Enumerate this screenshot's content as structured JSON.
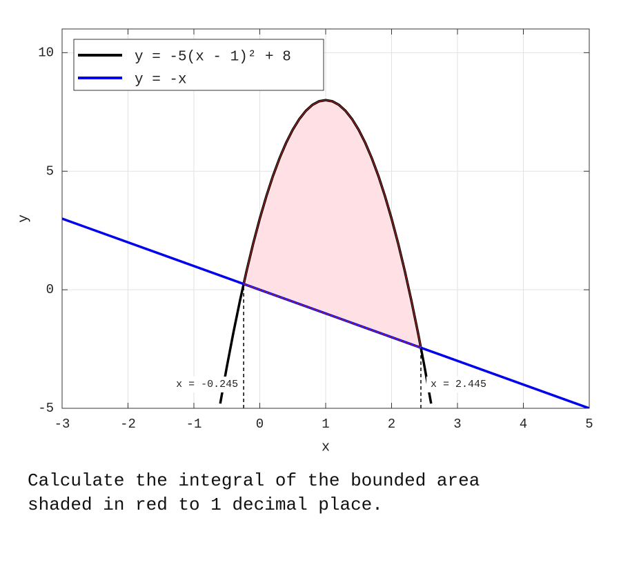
{
  "chart_data": {
    "type": "line",
    "xlabel": "x",
    "ylabel": "y",
    "xlim": [
      -3,
      5
    ],
    "ylim": [
      -5,
      11
    ],
    "xticks": [
      -3,
      -2,
      -1,
      0,
      1,
      2,
      3,
      4,
      5
    ],
    "yticks": [
      -5,
      0,
      5,
      10
    ],
    "grid": true,
    "legend": "upper left",
    "series": [
      {
        "name": "y = -5(x - 1)² + 8",
        "color": "#000000",
        "x": [
          -0.6,
          -0.5,
          -0.4,
          -0.3,
          -0.2,
          -0.1,
          0,
          0.1,
          0.2,
          0.3,
          0.4,
          0.5,
          0.6,
          0.7,
          0.8,
          0.9,
          1,
          1.1,
          1.2,
          1.3,
          1.4,
          1.5,
          1.6,
          1.7,
          1.8,
          1.9,
          2,
          2.1,
          2.2,
          2.3,
          2.4,
          2.5,
          2.6
        ],
        "values": [
          -4.8,
          -3.25,
          -1.8,
          -0.45,
          0.8,
          1.95,
          3,
          3.95,
          4.8,
          5.55,
          6.2,
          6.75,
          7.2,
          7.55,
          7.8,
          7.95,
          8,
          7.95,
          7.8,
          7.55,
          7.2,
          6.75,
          6.2,
          5.55,
          4.8,
          3.95,
          3,
          1.95,
          0.8,
          -0.45,
          -1.8,
          -3.25,
          -4.8
        ]
      },
      {
        "name": "y = -x",
        "color": "#0000ee",
        "x": [
          -3,
          5
        ],
        "values": [
          3,
          -5
        ]
      }
    ],
    "shade": {
      "fill": "#ffe0e4",
      "edge": "#d03030"
    },
    "annotations": [
      {
        "x": -0.245,
        "text": "x = -0.245",
        "side": "left"
      },
      {
        "x": 2.445,
        "text": "x = 2.445",
        "side": "right"
      }
    ]
  },
  "question_lines": [
    "Calculate the integral of the bounded area",
    "shaded in red to 1 decimal place."
  ]
}
